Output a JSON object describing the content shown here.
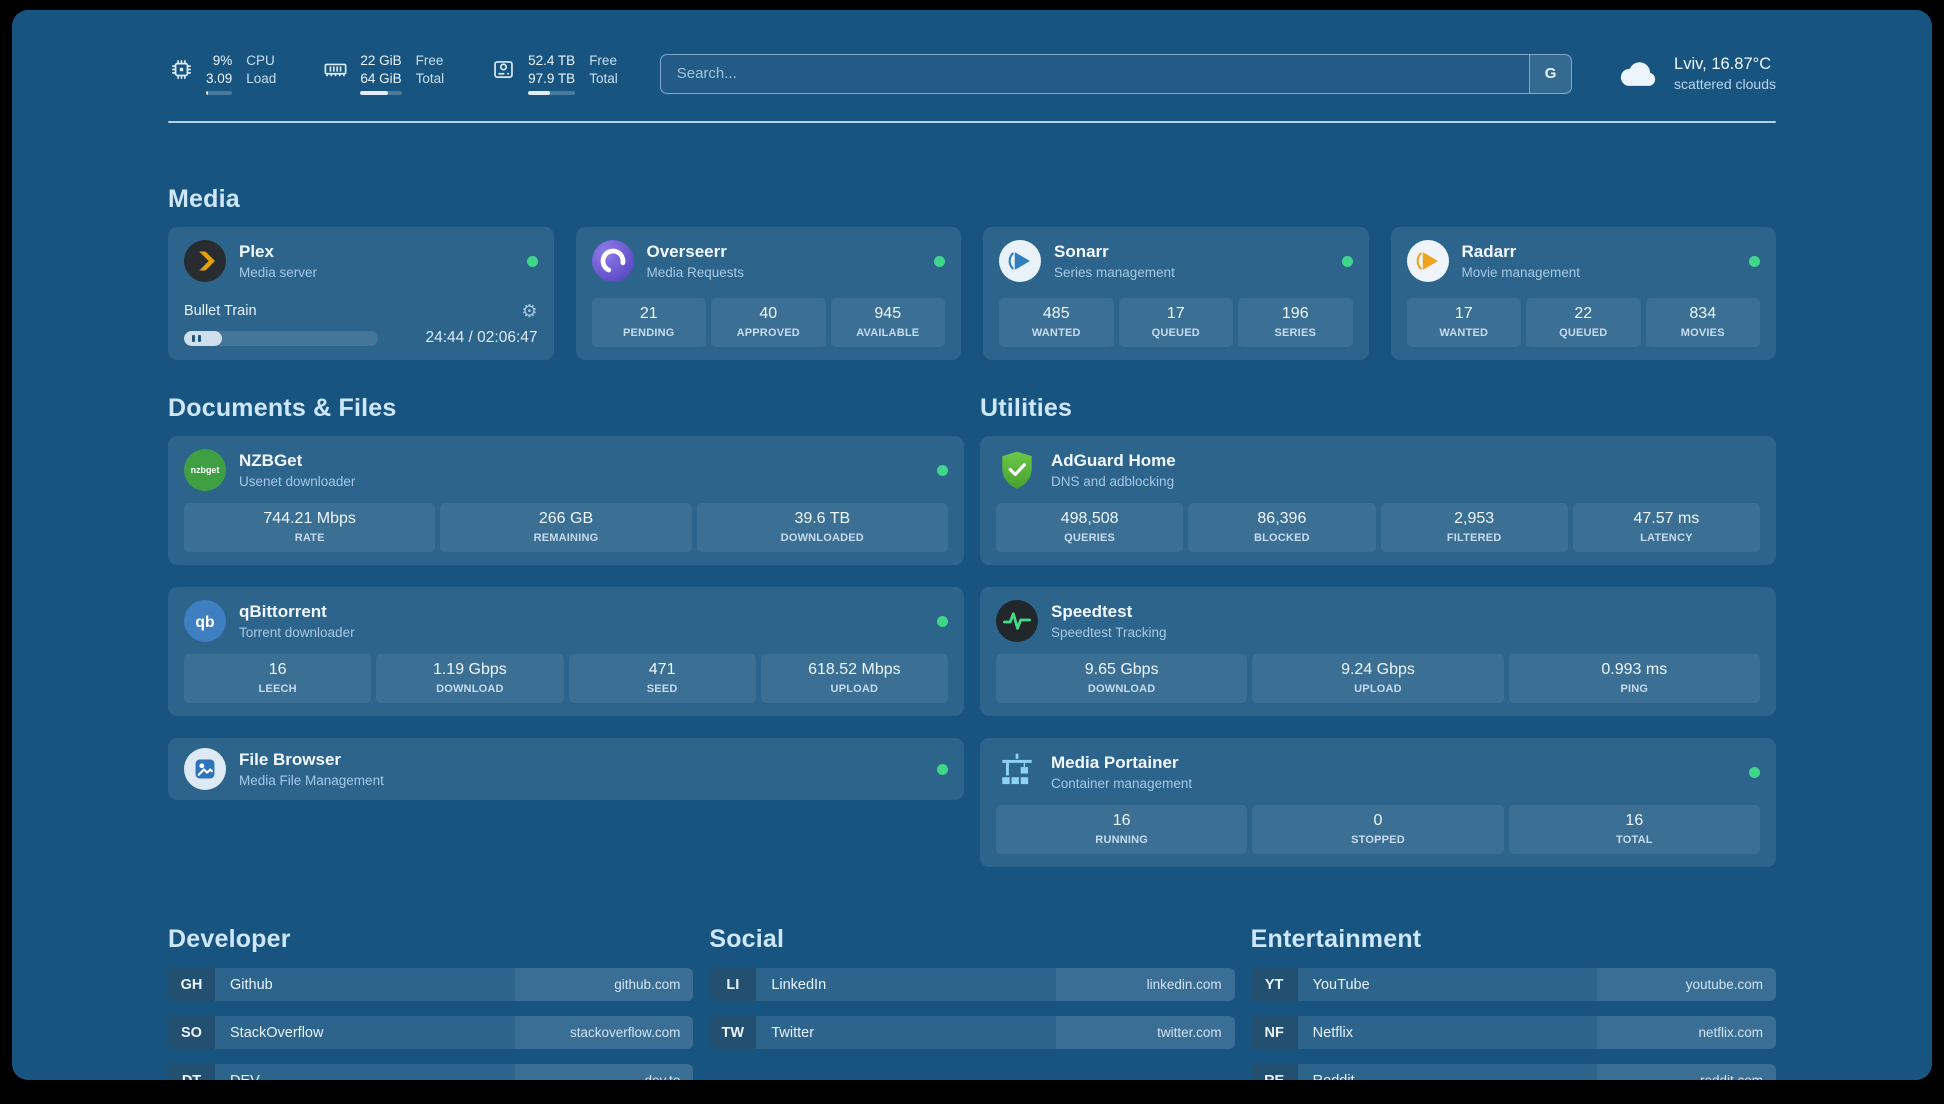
{
  "colors": {
    "background": "#175480",
    "status_online": "#3fd68a",
    "accent_text": "#cfe7fb"
  },
  "topbar": {
    "cpu": {
      "percent": "9%",
      "load": "3.09",
      "label_top": "CPU",
      "label_bottom": "Load",
      "bar_percent": 9
    },
    "ram": {
      "free": "22 GiB",
      "total": "64 GiB",
      "label_top": "Free",
      "label_bottom": "Total",
      "bar_percent": 66
    },
    "disk": {
      "free": "52.4 TB",
      "total": "97.9 TB",
      "label_top": "Free",
      "label_bottom": "Total",
      "bar_percent": 47
    },
    "search": {
      "placeholder": "Search...",
      "engine_label": "G"
    },
    "weather": {
      "location": "Lviv, 16.87°C",
      "condition": "scattered clouds"
    }
  },
  "sections": {
    "media": {
      "title": "Media"
    },
    "documents": {
      "title": "Documents & Files"
    },
    "utilities": {
      "title": "Utilities"
    },
    "developer": {
      "title": "Developer"
    },
    "social": {
      "title": "Social"
    },
    "entertainment": {
      "title": "Entertainment"
    }
  },
  "apps": {
    "plex": {
      "name": "Plex",
      "subtitle": "Media server",
      "now_playing": "Bullet Train",
      "time": "24:44 / 02:06:47",
      "progress_percent": 19.5
    },
    "overseerr": {
      "name": "Overseerr",
      "subtitle": "Media Requests",
      "stats": [
        {
          "value": "21",
          "label": "PENDING"
        },
        {
          "value": "40",
          "label": "APPROVED"
        },
        {
          "value": "945",
          "label": "AVAILABLE"
        }
      ]
    },
    "sonarr": {
      "name": "Sonarr",
      "subtitle": "Series management",
      "stats": [
        {
          "value": "485",
          "label": "WANTED"
        },
        {
          "value": "17",
          "label": "QUEUED"
        },
        {
          "value": "196",
          "label": "SERIES"
        }
      ]
    },
    "radarr": {
      "name": "Radarr",
      "subtitle": "Movie management",
      "stats": [
        {
          "value": "17",
          "label": "WANTED"
        },
        {
          "value": "22",
          "label": "QUEUED"
        },
        {
          "value": "834",
          "label": "MOVIES"
        }
      ]
    },
    "nzbget": {
      "name": "NZBGet",
      "subtitle": "Usenet downloader",
      "icon_text": "nzbget",
      "stats": [
        {
          "value": "744.21 Mbps",
          "label": "RATE"
        },
        {
          "value": "266 GB",
          "label": "REMAINING"
        },
        {
          "value": "39.6 TB",
          "label": "DOWNLOADED"
        }
      ]
    },
    "qbittorrent": {
      "name": "qBittorrent",
      "subtitle": "Torrent downloader",
      "icon_text": "qb",
      "stats": [
        {
          "value": "16",
          "label": "LEECH"
        },
        {
          "value": "1.19 Gbps",
          "label": "DOWNLOAD"
        },
        {
          "value": "471",
          "label": "SEED"
        },
        {
          "value": "618.52 Mbps",
          "label": "UPLOAD"
        }
      ]
    },
    "filebrowser": {
      "name": "File Browser",
      "subtitle": "Media File Management"
    },
    "adguard": {
      "name": "AdGuard Home",
      "subtitle": "DNS and adblocking",
      "stats": [
        {
          "value": "498,508",
          "label": "QUERIES"
        },
        {
          "value": "86,396",
          "label": "BLOCKED"
        },
        {
          "value": "2,953",
          "label": "FILTERED"
        },
        {
          "value": "47.57 ms",
          "label": "LATENCY"
        }
      ]
    },
    "speedtest": {
      "name": "Speedtest",
      "subtitle": "Speedtest Tracking",
      "stats": [
        {
          "value": "9.65 Gbps",
          "label": "DOWNLOAD"
        },
        {
          "value": "9.24 Gbps",
          "label": "UPLOAD"
        },
        {
          "value": "0.993 ms",
          "label": "PING"
        }
      ]
    },
    "portainer": {
      "name": "Media Portainer",
      "subtitle": "Container management",
      "stats": [
        {
          "value": "16",
          "label": "RUNNING"
        },
        {
          "value": "0",
          "label": "STOPPED"
        },
        {
          "value": "16",
          "label": "TOTAL"
        }
      ]
    }
  },
  "bookmarks": {
    "developer": [
      {
        "abbr": "GH",
        "name": "Github",
        "domain": "github.com"
      },
      {
        "abbr": "SO",
        "name": "StackOverflow",
        "domain": "stackoverflow.com"
      },
      {
        "abbr": "DT",
        "name": "DEV",
        "domain": "dev.to"
      }
    ],
    "social": [
      {
        "abbr": "LI",
        "name": "LinkedIn",
        "domain": "linkedin.com"
      },
      {
        "abbr": "TW",
        "name": "Twitter",
        "domain": "twitter.com"
      }
    ],
    "entertainment": [
      {
        "abbr": "YT",
        "name": "YouTube",
        "domain": "youtube.com"
      },
      {
        "abbr": "NF",
        "name": "Netflix",
        "domain": "netflix.com"
      },
      {
        "abbr": "RE",
        "name": "Reddit",
        "domain": "reddit.com"
      }
    ]
  }
}
